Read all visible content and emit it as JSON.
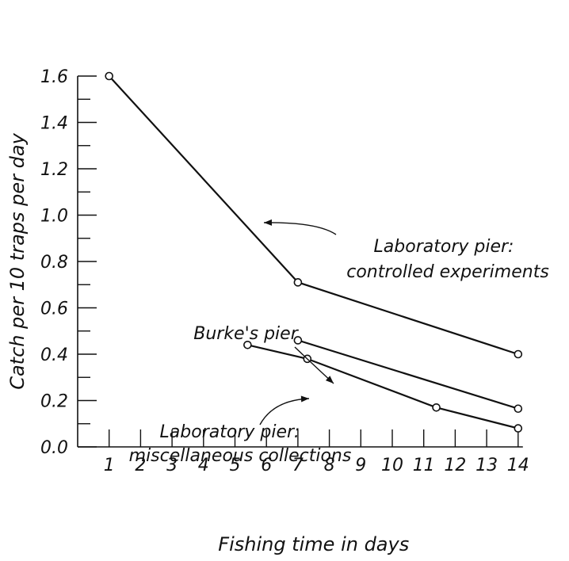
{
  "chart_data": {
    "type": "line",
    "title": "",
    "xlabel": "Fishing time in days",
    "ylabel": "Catch per 10 traps per day",
    "x_ticks": [
      "1",
      "2",
      "3",
      "4",
      "5",
      "6",
      "7",
      "8",
      "9",
      "10",
      "11",
      "12",
      "13",
      "14"
    ],
    "y_ticks": [
      "0.0",
      "0.2",
      "0.4",
      "0.6",
      "0.8",
      "1.0",
      "1.2",
      "1.4",
      "1.6"
    ],
    "xlim": [
      0,
      14
    ],
    "ylim": [
      0.0,
      1.6
    ],
    "grid": false,
    "legend": "none",
    "series": [
      {
        "name": "Laboratory pier: controlled experiments",
        "points": [
          {
            "x": 1,
            "y": 1.6
          },
          {
            "x": 7,
            "y": 0.71
          },
          {
            "x": 14,
            "y": 0.4
          }
        ]
      },
      {
        "name": "Burke's pier",
        "points": [
          {
            "x": 7,
            "y": 0.46
          },
          {
            "x": 14,
            "y": 0.165
          }
        ]
      },
      {
        "name": "Laboratory pier: miscellaneous collections",
        "points": [
          {
            "x": 5.4,
            "y": 0.44
          },
          {
            "x": 7.3,
            "y": 0.38
          },
          {
            "x": 11.4,
            "y": 0.17
          },
          {
            "x": 14,
            "y": 0.08
          }
        ]
      }
    ],
    "annotations": [
      {
        "lines": [
          "Laboratory pier:",
          "controlled experiments"
        ],
        "series": 0
      },
      {
        "lines": [
          "Burke's pier"
        ],
        "series": 1
      },
      {
        "lines": [
          "Laboratory pier:",
          "miscellaneous collections"
        ],
        "series": 2
      }
    ]
  }
}
